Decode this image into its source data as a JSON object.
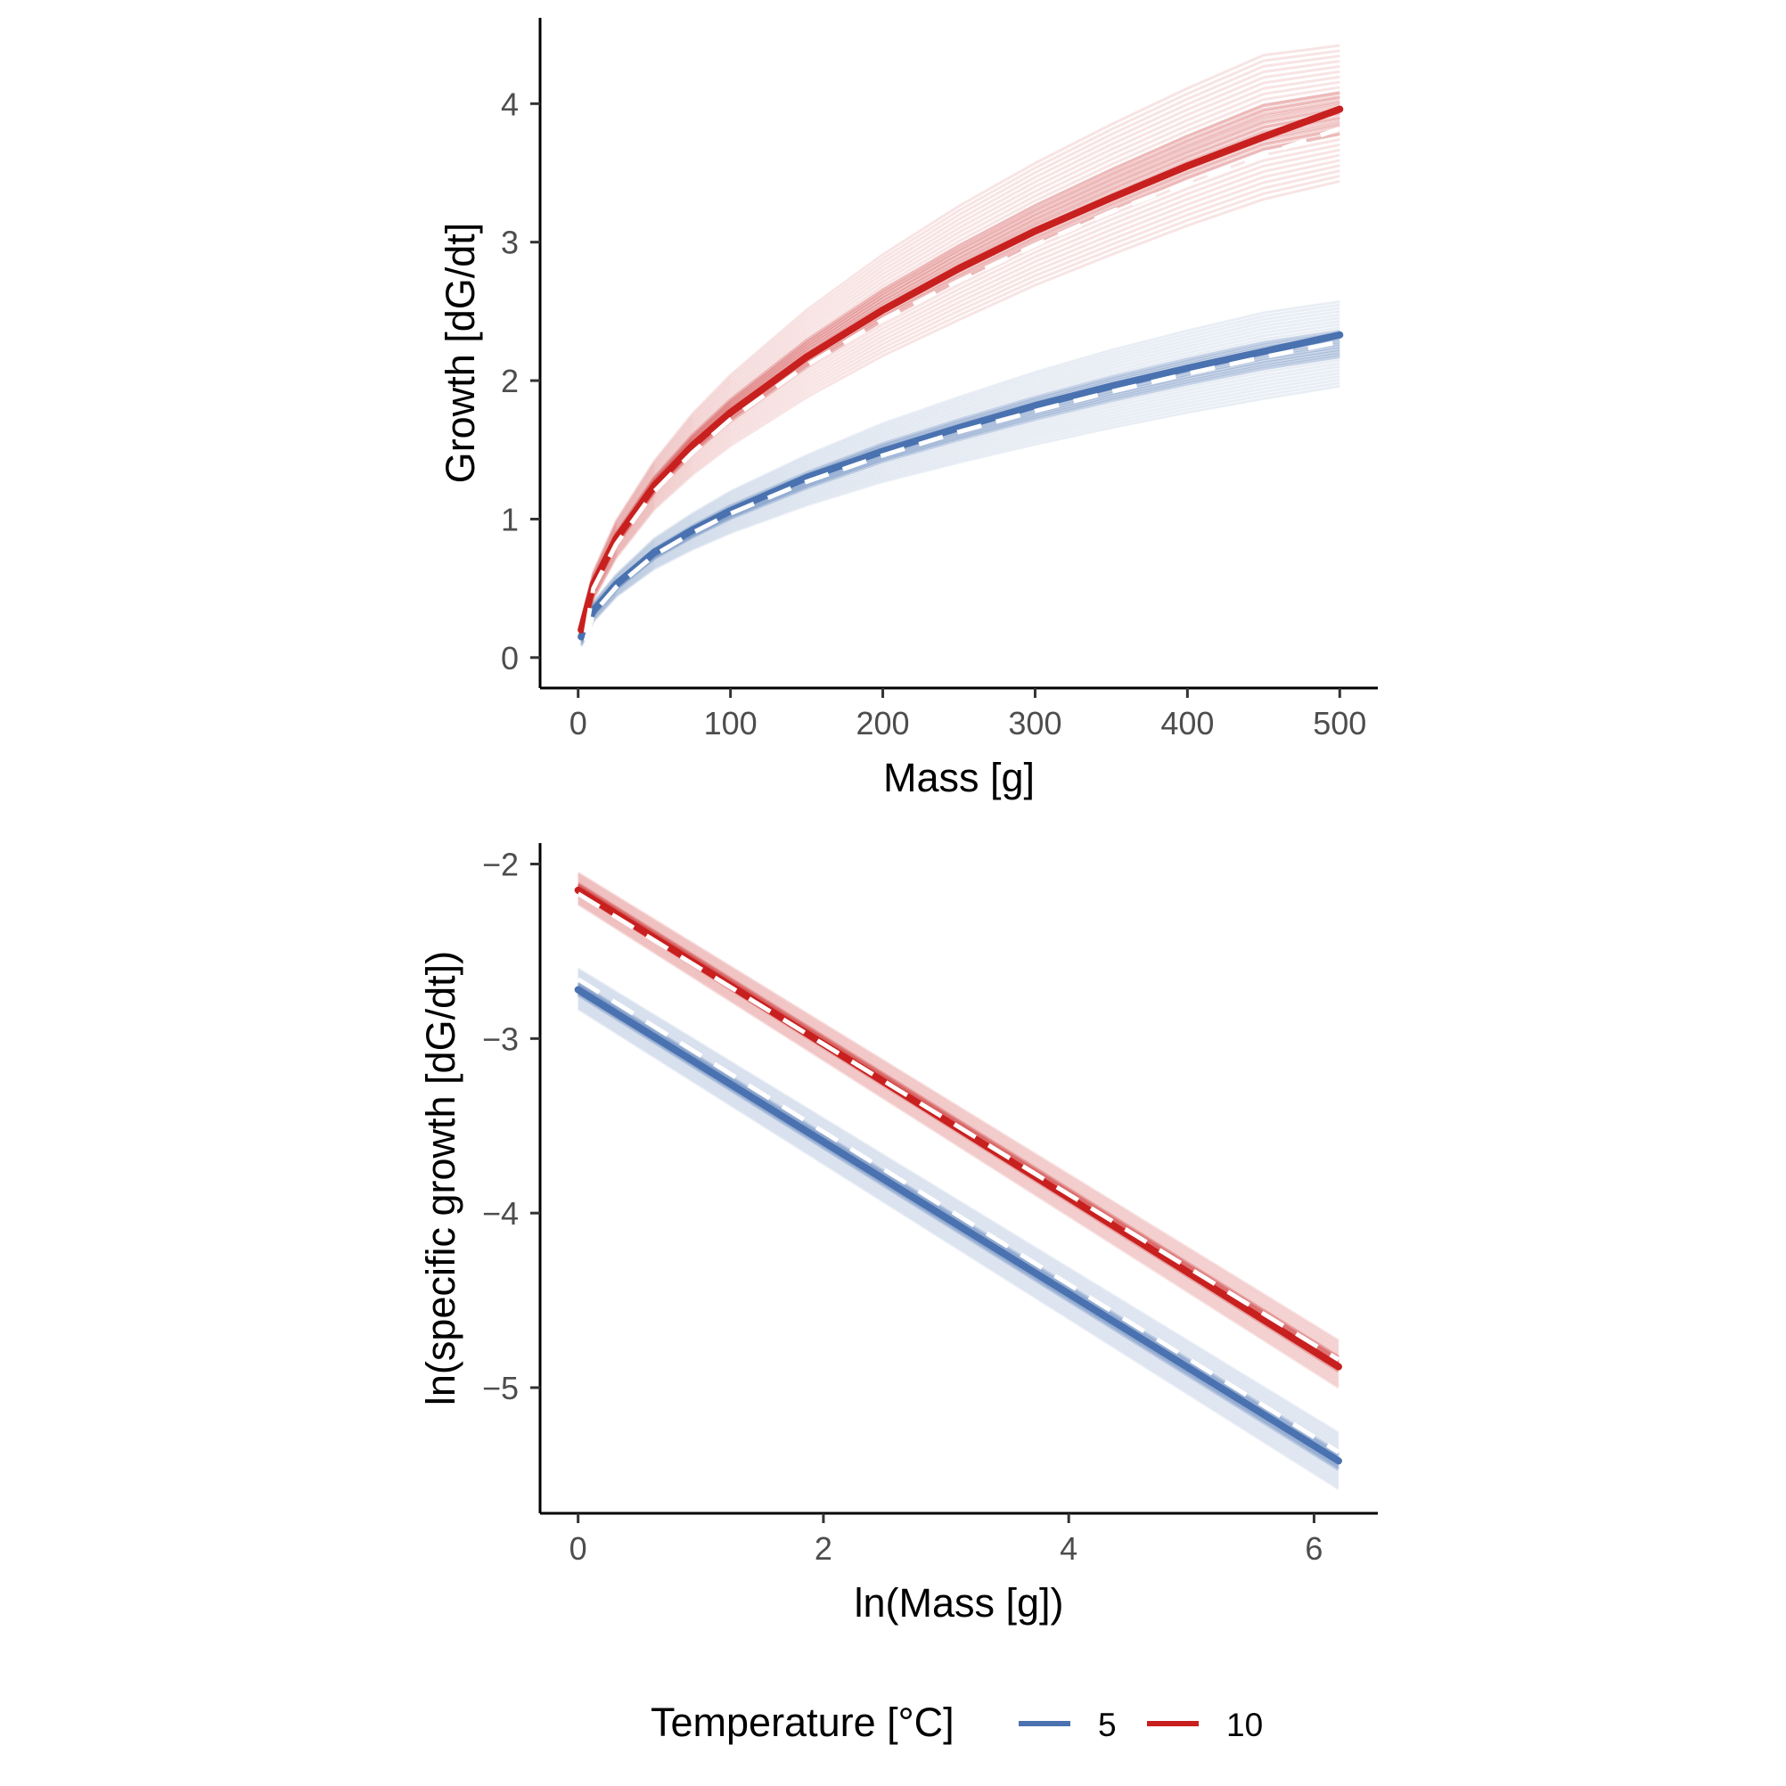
{
  "chart_data": [
    {
      "type": "line",
      "panel": "top",
      "xlabel": "Mass [g]",
      "ylabel": "Growth [dG/dt]",
      "xlim": [
        -25,
        525
      ],
      "ylim": [
        -0.22,
        4.62
      ],
      "xticks": [
        0,
        100,
        200,
        300,
        400,
        500
      ],
      "xtick_labels": [
        "0",
        "100",
        "200",
        "300",
        "400",
        "500"
      ],
      "yticks": [
        0,
        1,
        2,
        3,
        4
      ],
      "ytick_labels": [
        "0",
        "1",
        "2",
        "3",
        "4"
      ],
      "grid": false,
      "series": [
        {
          "name": "5",
          "color": "#4a72b0",
          "x": [
            2,
            10,
            25,
            50,
            75,
            100,
            150,
            200,
            250,
            300,
            350,
            400,
            450,
            500
          ],
          "values": [
            0.15,
            0.34,
            0.53,
            0.76,
            0.92,
            1.06,
            1.3,
            1.49,
            1.66,
            1.82,
            1.96,
            2.09,
            2.21,
            2.33
          ],
          "mean_x": [
            5,
            10,
            25,
            50,
            75,
            100,
            150,
            200,
            250,
            300,
            350,
            400,
            450,
            500
          ],
          "mean_values": [
            0.12,
            0.32,
            0.51,
            0.74,
            0.9,
            1.04,
            1.27,
            1.46,
            1.63,
            1.78,
            1.92,
            2.05,
            2.17,
            2.28
          ],
          "band_low": [
            0.08,
            0.26,
            0.44,
            0.64,
            0.78,
            0.9,
            1.1,
            1.27,
            1.41,
            1.54,
            1.66,
            1.77,
            1.87,
            1.96
          ],
          "band_high": [
            0.22,
            0.4,
            0.6,
            0.86,
            1.04,
            1.2,
            1.46,
            1.69,
            1.88,
            2.06,
            2.22,
            2.36,
            2.49,
            2.57
          ]
        },
        {
          "name": "10",
          "color": "#c8201f",
          "x": [
            2,
            10,
            25,
            50,
            75,
            100,
            150,
            200,
            250,
            300,
            350,
            400,
            450,
            500
          ],
          "values": [
            0.2,
            0.53,
            0.86,
            1.24,
            1.53,
            1.77,
            2.17,
            2.51,
            2.81,
            3.08,
            3.32,
            3.55,
            3.76,
            3.96
          ],
          "mean_x": [
            5,
            10,
            25,
            50,
            75,
            100,
            150,
            200,
            250,
            300,
            350,
            400,
            450,
            500
          ],
          "mean_values": [
            0.18,
            0.5,
            0.82,
            1.2,
            1.48,
            1.72,
            2.11,
            2.44,
            2.72,
            2.98,
            3.22,
            3.43,
            3.63,
            3.82
          ],
          "band_low": [
            0.12,
            0.42,
            0.72,
            1.07,
            1.32,
            1.53,
            1.88,
            2.18,
            2.44,
            2.69,
            2.91,
            3.12,
            3.31,
            3.44
          ],
          "band_high": [
            0.27,
            0.62,
            0.99,
            1.42,
            1.76,
            2.04,
            2.51,
            2.91,
            3.26,
            3.57,
            3.85,
            4.11,
            4.35,
            4.42
          ]
        }
      ]
    },
    {
      "type": "line",
      "panel": "bottom",
      "xlabel": "ln(Mass [g])",
      "ylabel": "ln(specific growth [dG/dt])",
      "xlim": [
        -0.31,
        6.52
      ],
      "ylim": [
        -5.72,
        -1.88
      ],
      "xticks": [
        0,
        2,
        4,
        6
      ],
      "xtick_labels": [
        "0",
        "2",
        "4",
        "6"
      ],
      "yticks": [
        -2,
        -3,
        -4,
        -5
      ],
      "ytick_labels": [
        "−2",
        "−3",
        "−4",
        "−5"
      ],
      "grid": false,
      "series": [
        {
          "name": "5",
          "color": "#4a72b0",
          "x": [
            0,
            6.2
          ],
          "values": [
            -2.72,
            -5.42
          ],
          "mean_values": [
            -2.66,
            -5.37
          ],
          "band_low_values": [
            -2.83,
            -5.58
          ],
          "band_high_values": [
            -2.6,
            -5.26
          ]
        },
        {
          "name": "10",
          "color": "#c8201f",
          "x": [
            0,
            6.2
          ],
          "values": [
            -2.15,
            -4.88
          ],
          "mean_values": [
            -2.17,
            -4.84
          ],
          "band_low_values": [
            -2.23,
            -5.0
          ],
          "band_high_values": [
            -2.05,
            -4.73
          ]
        }
      ]
    }
  ],
  "legend": {
    "title": "Temperature [°C]",
    "placement": "bottom",
    "items": [
      {
        "label": "5",
        "color": "#4a72b0"
      },
      {
        "label": "10",
        "color": "#c8201f"
      }
    ]
  }
}
